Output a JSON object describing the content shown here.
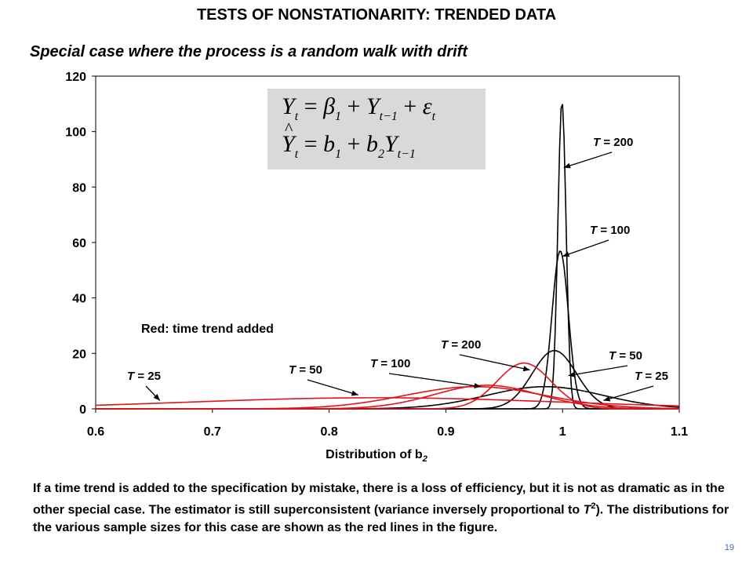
{
  "title": "TESTS OF NONSTATIONARITY: TRENDED DATA",
  "subtitle": "Special case where the process is a random walk with drift",
  "paragraph_parts": [
    "If a time trend is added to the specification by mistake, there is a loss of efficiency, but it is not as dramatic as in the other special case.  The estimator is still superconsistent (variance inversely proportional to ",
    "T",
    "2",
    ").  The distributions for the various sample sizes for this case are shown as the red lines in the figure."
  ],
  "page_number": "19",
  "equations": {
    "eq1": {
      "lhs": "Y",
      "lhs_sub": "t",
      "eq": "=",
      "b1": "β",
      "b1_sub": "1",
      "plus": "+",
      "y": "Y",
      "y_sub": "t−1",
      "plus2": "+",
      "eps": "ε",
      "eps_sub": "t"
    },
    "eq2": {
      "lhs": "Y",
      "lhs_sub": "t",
      "eq": "=",
      "b": "b",
      "b_sub": "1",
      "plus": "+",
      "b2": "b",
      "b2_sub": "2",
      "y": "Y",
      "y_sub": "t−1"
    }
  },
  "chart_data": {
    "type": "line",
    "xlabel": "Distribution of b",
    "xlabel_sub": "2",
    "xlim": [
      0.6,
      1.1
    ],
    "ylim": [
      0,
      120
    ],
    "xticks": [
      "0.6",
      "0.7",
      "0.8",
      "0.9",
      "1",
      "1.1"
    ],
    "yticks": [
      "0",
      "20",
      "40",
      "60",
      "80",
      "100",
      "120"
    ],
    "colors": {
      "black": "#000000",
      "red": "#e0141a"
    },
    "legend_note": "Red: time trend added",
    "series": [
      {
        "name": "T = 25",
        "color": "black",
        "mean": 0.985,
        "sd": 0.05,
        "peak": 8
      },
      {
        "name": "T = 50",
        "color": "black",
        "mean": 0.993,
        "sd": 0.019,
        "peak": 21
      },
      {
        "name": "T = 100",
        "color": "black",
        "mean": 0.998,
        "sd": 0.007,
        "peak": 57
      },
      {
        "name": "T = 200",
        "color": "black",
        "mean": 0.9995,
        "sd": 0.0035,
        "peak": 111
      },
      {
        "name": "T = 25",
        "color": "red",
        "mean": 0.84,
        "sd": 0.16,
        "peak": 4
      },
      {
        "name": "T = 50",
        "color": "red",
        "mean": 0.925,
        "sd": 0.06,
        "peak": 8
      },
      {
        "name": "T = 100",
        "color": "red",
        "mean": 0.935,
        "sd": 0.045,
        "peak": 8.5
      },
      {
        "name": "T = 200",
        "color": "red",
        "mean": 0.967,
        "sd": 0.023,
        "peak": 16.5
      }
    ],
    "annotations": [
      {
        "text": "T",
        "rest": " = 200",
        "target": [
          1.001,
          87
        ]
      },
      {
        "text": "T",
        "rest": " = 100",
        "target": [
          1.0,
          55
        ]
      },
      {
        "text": "T",
        "rest": " = 200",
        "target": [
          0.972,
          14
        ]
      },
      {
        "text": "T",
        "rest": " = 100",
        "target": [
          0.93,
          8
        ]
      },
      {
        "text": "T",
        "rest": " = 50",
        "target": [
          0.825,
          5
        ]
      },
      {
        "text": "T",
        "rest": " = 25",
        "target": [
          0.655,
          3
        ]
      },
      {
        "text": "T",
        "rest": " = 50",
        "target": [
          1.005,
          12
        ]
      },
      {
        "text": "T",
        "rest": " = 25",
        "target": [
          1.035,
          3
        ]
      }
    ]
  }
}
